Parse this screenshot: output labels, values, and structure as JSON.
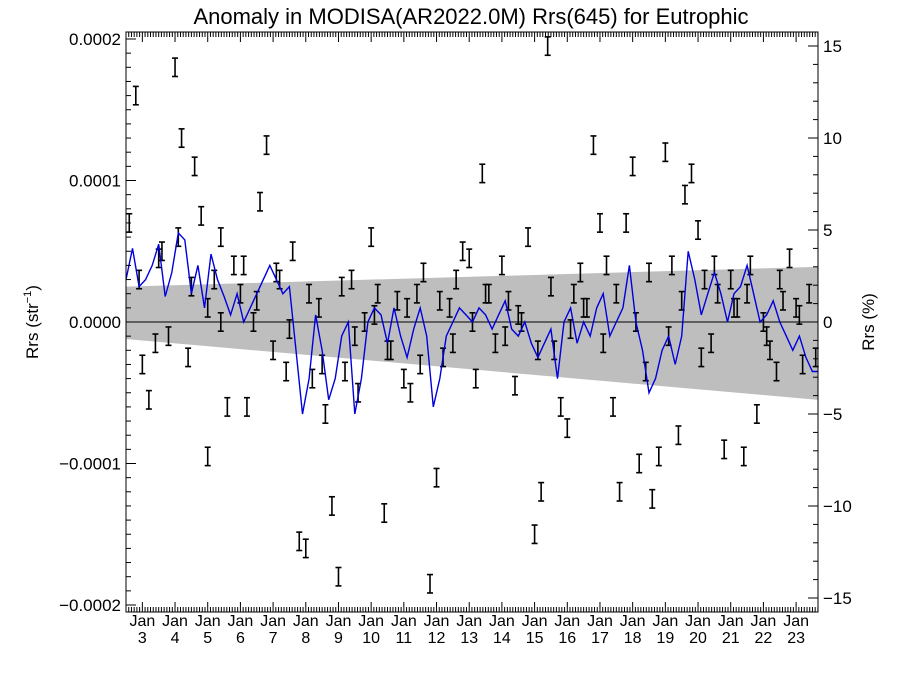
{
  "chart_data": {
    "type": "line",
    "title": "Anomaly in MODISA(AR2022.0M) Rrs(645) for Eutrophic",
    "ylabel_left": "Rrs (str",
    "ylabel_left_exponent": "−1",
    "ylabel_left_close": ")",
    "ylabel_right": "Rrs (%)",
    "xlabel": "",
    "x_range": [
      2002.5,
      2023.67
    ],
    "ylim_left": [
      -0.0002,
      0.0002
    ],
    "ylim_right": [
      -15.4,
      15.4
    ],
    "left_ticks": [
      {
        "value": 0.0002,
        "label": "0.0002"
      },
      {
        "value": 0.0001,
        "label": "0.0001"
      },
      {
        "value": 0.0,
        "label": "0.0000"
      },
      {
        "value": -0.0001,
        "label": "−0.0001"
      },
      {
        "value": -0.0002,
        "label": "−0.0002"
      }
    ],
    "right_ticks": [
      {
        "value": 15,
        "label": "15"
      },
      {
        "value": 10,
        "label": "10"
      },
      {
        "value": 5,
        "label": "5"
      },
      {
        "value": 0,
        "label": "0"
      },
      {
        "value": -5,
        "label": "−5"
      },
      {
        "value": -10,
        "label": "−10"
      },
      {
        "value": -15,
        "label": "−15"
      }
    ],
    "x_month_label": "Jan",
    "x_years": [
      "3",
      "4",
      "5",
      "6",
      "7",
      "8",
      "9",
      "10",
      "11",
      "12",
      "13",
      "14",
      "15",
      "16",
      "17",
      "18",
      "19",
      "20",
      "21",
      "22",
      "23"
    ],
    "x_year_positions": [
      2003,
      2004,
      2005,
      2006,
      2007,
      2008,
      2009,
      2010,
      2011,
      2012,
      2013,
      2014,
      2015,
      2016,
      2017,
      2018,
      2019,
      2020,
      2021,
      2022,
      2023
    ],
    "zero_line": 0,
    "uncertainty_band": {
      "color": "#bebebe",
      "x": [
        2002.5,
        2023.67
      ],
      "upper": [
        2.5e-05,
        3.9e-05
      ],
      "lower": [
        -1.2e-05,
        -5.5e-05
      ]
    },
    "series": [
      {
        "name": "",
        "style": "line",
        "color": "#0000dd",
        "x": [
          2002.5,
          2002.7,
          2002.9,
          2003.1,
          2003.3,
          2003.5,
          2003.7,
          2003.9,
          2004.1,
          2004.3,
          2004.5,
          2004.7,
          2004.9,
          2005.1,
          2005.3,
          2005.5,
          2005.7,
          2005.9,
          2006.1,
          2006.3,
          2006.5,
          2006.7,
          2006.9,
          2007.1,
          2007.3,
          2007.5,
          2007.7,
          2007.9,
          2008.1,
          2008.3,
          2008.5,
          2008.7,
          2008.9,
          2009.1,
          2009.3,
          2009.5,
          2009.7,
          2009.9,
          2010.1,
          2010.3,
          2010.5,
          2010.7,
          2010.9,
          2011.1,
          2011.3,
          2011.5,
          2011.7,
          2011.9,
          2012.1,
          2012.3,
          2012.5,
          2012.7,
          2012.9,
          2013.1,
          2013.3,
          2013.5,
          2013.7,
          2013.9,
          2014.1,
          2014.3,
          2014.5,
          2014.7,
          2014.9,
          2015.1,
          2015.3,
          2015.5,
          2015.7,
          2015.9,
          2016.1,
          2016.3,
          2016.5,
          2016.7,
          2016.9,
          2017.1,
          2017.3,
          2017.5,
          2017.7,
          2017.9,
          2018.1,
          2018.3,
          2018.5,
          2018.7,
          2018.9,
          2019.1,
          2019.3,
          2019.5,
          2019.7,
          2019.9,
          2020.1,
          2020.3,
          2020.5,
          2020.7,
          2020.9,
          2021.1,
          2021.3,
          2021.5,
          2021.7,
          2021.9,
          2022.1,
          2022.3,
          2022.5,
          2022.7,
          2022.9,
          2023.1,
          2023.3,
          2023.5,
          2023.67
        ],
        "y": [
          3e-05,
          5.2e-05,
          2.5e-05,
          3e-05,
          4e-05,
          5.5e-05,
          1.8e-05,
          3.5e-05,
          6.3e-05,
          5.8e-05,
          2e-05,
          4e-05,
          1e-05,
          4.8e-05,
          3e-05,
          1.8e-05,
          5e-06,
          2e-05,
          0.0,
          1e-05,
          2e-05,
          3e-05,
          4e-05,
          3e-05,
          2e-05,
          2.5e-05,
          -2e-05,
          -6.5e-05,
          -4e-05,
          5e-06,
          -2e-05,
          -5.5e-05,
          -4e-05,
          -1e-05,
          0.0,
          -6.5e-05,
          -4e-05,
          0.0,
          1e-05,
          5e-06,
          -1.5e-05,
          1e-05,
          -1e-05,
          -2.5e-05,
          -5e-06,
          1e-05,
          -1e-05,
          -6e-05,
          -4e-05,
          -1e-05,
          0.0,
          1e-05,
          5e-06,
          0.0,
          1e-05,
          5e-06,
          -5e-06,
          5e-06,
          1.5e-05,
          -5e-06,
          -1e-05,
          0.0,
          -1.5e-05,
          -2.5e-05,
          -1.5e-05,
          -5e-06,
          -4e-05,
          0.0,
          1e-05,
          -1.5e-05,
          0.0,
          -1e-05,
          1e-05,
          2e-05,
          -1e-05,
          0.0,
          1e-05,
          4e-05,
          0.0,
          -2e-05,
          -5e-05,
          -4e-05,
          -2e-05,
          -1e-05,
          -3e-05,
          -1e-05,
          5e-05,
          3e-05,
          5e-06,
          2e-05,
          3.5e-05,
          2e-05,
          0.0,
          2e-05,
          2.5e-05,
          4e-05,
          2e-05,
          0.0,
          5e-06,
          1.5e-05,
          0.0,
          -1e-05,
          -2e-05,
          -1e-05,
          -2.5e-05,
          -3.5e-05,
          -3.5e-05
        ]
      },
      {
        "name": "",
        "style": "errorbar",
        "color": "#000000",
        "err": 6.5e-06,
        "x": [
          2002.6,
          2002.8,
          2003.0,
          2003.2,
          2003.4,
          2003.6,
          2003.8,
          2004.0,
          2004.2,
          2004.4,
          2004.6,
          2004.8,
          2005.0,
          2005.2,
          2005.4,
          2005.6,
          2005.8,
          2006.0,
          2006.2,
          2006.4,
          2006.6,
          2006.8,
          2007.0,
          2007.2,
          2007.4,
          2007.6,
          2007.8,
          2008.0,
          2008.2,
          2008.4,
          2008.6,
          2008.8,
          2009.0,
          2009.2,
          2009.4,
          2009.6,
          2009.8,
          2010.0,
          2010.2,
          2010.4,
          2010.6,
          2010.8,
          2011.0,
          2011.2,
          2011.4,
          2011.6,
          2011.8,
          2012.0,
          2012.2,
          2012.4,
          2012.6,
          2012.8,
          2013.0,
          2013.2,
          2013.4,
          2013.6,
          2013.8,
          2014.0,
          2014.2,
          2014.4,
          2014.6,
          2014.8,
          2015.0,
          2015.2,
          2015.4,
          2015.6,
          2015.8,
          2016.0,
          2016.2,
          2016.4,
          2016.6,
          2016.8,
          2017.0,
          2017.2,
          2017.4,
          2017.6,
          2017.8,
          2018.0,
          2018.2,
          2018.4,
          2018.6,
          2018.8,
          2019.0,
          2019.2,
          2019.4,
          2019.6,
          2019.8,
          2020.0,
          2020.2,
          2020.4,
          2020.6,
          2020.8,
          2021.0,
          2021.2,
          2021.4,
          2021.6,
          2021.8,
          2022.0,
          2022.2,
          2022.4,
          2022.6,
          2022.8,
          2023.0,
          2023.2,
          2023.4,
          2023.6,
          2002.9,
          2003.5,
          2004.1,
          2004.5,
          2005.0,
          2005.4,
          2006.1,
          2006.5,
          2007.1,
          2007.5,
          2008.1,
          2008.5,
          2009.1,
          2009.5,
          2010.1,
          2010.5,
          2011.1,
          2011.5,
          2012.1,
          2012.5,
          2013.1,
          2013.5,
          2014.1,
          2014.5,
          2015.1,
          2015.5,
          2016.1,
          2016.5,
          2017.1,
          2017.5,
          2018.1,
          2018.5,
          2019.1,
          2019.5,
          2020.1,
          2020.5,
          2021.1,
          2021.5,
          2022.1,
          2022.5,
          2023.1
        ],
        "y": [
          7e-05,
          0.00016,
          -3e-05,
          -5.5e-05,
          -1.5e-05,
          5e-05,
          -1e-05,
          0.00018,
          0.00013,
          -2.5e-05,
          0.00011,
          7.5e-05,
          -9.5e-05,
          3e-05,
          6e-05,
          -6e-05,
          4e-05,
          2e-05,
          -6e-05,
          0.0,
          8.5e-05,
          0.000125,
          -2e-05,
          3e-05,
          -3.5e-05,
          5e-05,
          -0.000155,
          -0.00016,
          -4e-05,
          1e-05,
          -6.5e-05,
          -0.00013,
          -0.00018,
          -3.5e-05,
          3e-05,
          -5e-05,
          0.0,
          6e-05,
          2e-05,
          -0.000135,
          -2e-05,
          1.5e-05,
          -4e-05,
          -5e-05,
          2e-05,
          3.5e-05,
          -0.000185,
          -0.00011,
          -2.5e-05,
          1e-05,
          3e-05,
          5e-05,
          4.5e-05,
          -4e-05,
          0.000105,
          2e-05,
          -1.5e-05,
          4e-05,
          1.5e-05,
          -4.5e-05,
          0.0,
          6e-05,
          -0.00015,
          -0.00012,
          0.000195,
          -2e-05,
          -6e-05,
          -7.5e-05,
          2e-05,
          3.5e-05,
          1e-05,
          0.000125,
          7e-05,
          4e-05,
          -6e-05,
          -0.00012,
          7e-05,
          0.00011,
          -0.0001,
          -3.5e-05,
          -0.000125,
          -9.5e-05,
          0.00012,
          4e-05,
          -8e-05,
          9e-05,
          0.000105,
          6.5e-05,
          3e-05,
          -1.5e-05,
          2e-05,
          -9e-05,
          3e-05,
          1e-05,
          -9.5e-05,
          4e-05,
          -6.5e-05,
          0.0,
          -2e-05,
          -3.5e-05,
          1.5e-05,
          4.5e-05,
          1e-05,
          -3e-05,
          2e-05,
          -2.5e-05,
          3e-05,
          4.5e-05,
          6e-05,
          2.5e-05,
          1e-05,
          0.0,
          4e-05,
          1.5e-05,
          3.5e-05,
          -5e-06,
          2e-05,
          -3e-05,
          2.5e-05,
          -1e-05,
          5e-06,
          -2e-05,
          1e-05,
          -3e-05,
          1.5e-05,
          -1.5e-05,
          0.0,
          2e-05,
          -1e-05,
          5e-06,
          -2e-05,
          2.5e-05,
          -5e-06,
          1e-05,
          -1.5e-05,
          2e-05,
          0.0,
          3.5e-05,
          -1e-05,
          1.5e-05,
          -2.5e-05,
          4e-05,
          1e-05,
          2e-05,
          -1e-05,
          3e-05,
          5e-06
        ]
      }
    ],
    "grid": false,
    "legend": "none"
  }
}
